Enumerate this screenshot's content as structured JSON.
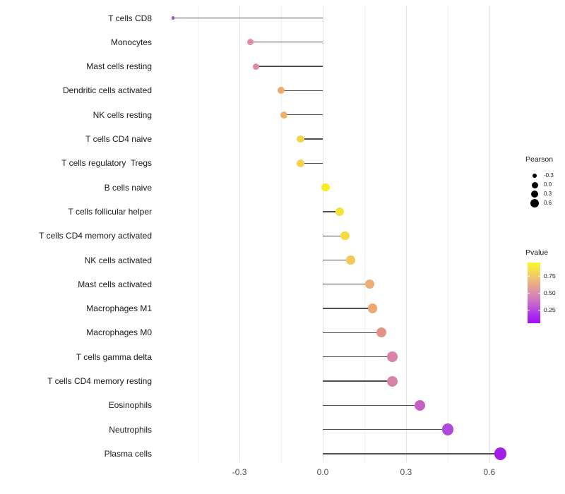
{
  "chart_data": {
    "type": "lollipop",
    "orientation": "horizontal",
    "title": "",
    "xlabel": "",
    "ylabel": "",
    "x_axis": {
      "tick_labels": [
        "-0.3",
        "0.0",
        "0.3",
        "0.6"
      ],
      "tick_values": [
        -0.3,
        0.0,
        0.3,
        0.6
      ],
      "minor_gridline_values": [
        -0.45,
        -0.15,
        0.15,
        0.45
      ],
      "range": [
        -0.6,
        0.71
      ],
      "grid": "vertical-only"
    },
    "points": [
      {
        "label": "T cells CD8",
        "pearson": -0.54,
        "pvalue_approx": 0.08,
        "color": "#A44EC8",
        "diameter": 4.5
      },
      {
        "label": "Monocytes",
        "pearson": -0.26,
        "pvalue_approx": 0.42,
        "color": "#E18CA4",
        "diameter": 9
      },
      {
        "label": "Mast cells resting",
        "pearson": -0.24,
        "pvalue_approx": 0.44,
        "color": "#DF89A1",
        "diameter": 9
      },
      {
        "label": "Dendritic cells activated",
        "pearson": -0.15,
        "pvalue_approx": 0.62,
        "color": "#EDAB6F",
        "diameter": 10
      },
      {
        "label": "NK cells resting",
        "pearson": -0.14,
        "pvalue_approx": 0.64,
        "color": "#EFB167",
        "diameter": 10
      },
      {
        "label": "T cells CD4 naive",
        "pearson": -0.08,
        "pvalue_approx": 0.78,
        "color": "#F4D44D",
        "diameter": 10.5
      },
      {
        "label": "T cells regulatory  Tregs",
        "pearson": -0.08,
        "pvalue_approx": 0.78,
        "color": "#F4D34E",
        "diameter": 10.5
      },
      {
        "label": "B cells naive",
        "pearson": 0.01,
        "pvalue_approx": 0.92,
        "color": "#F9EC22",
        "diameter": 11.5
      },
      {
        "label": "T cells follicular helper",
        "pearson": 0.06,
        "pvalue_approx": 0.82,
        "color": "#F6E03A",
        "diameter": 12
      },
      {
        "label": "T cells CD4 memory activated",
        "pearson": 0.08,
        "pvalue_approx": 0.8,
        "color": "#F5DC41",
        "diameter": 12.5
      },
      {
        "label": "NK cells activated",
        "pearson": 0.1,
        "pvalue_approx": 0.72,
        "color": "#F2C957",
        "diameter": 12.5
      },
      {
        "label": "Mast cells activated",
        "pearson": 0.17,
        "pvalue_approx": 0.62,
        "color": "#EFAD76",
        "diameter": 13
      },
      {
        "label": "Macrophages M1",
        "pearson": 0.18,
        "pvalue_approx": 0.6,
        "color": "#EDA96F",
        "diameter": 13.5
      },
      {
        "label": "Macrophages M0",
        "pearson": 0.21,
        "pvalue_approx": 0.52,
        "color": "#E39286",
        "diameter": 14
      },
      {
        "label": "T cells gamma delta",
        "pearson": 0.25,
        "pvalue_approx": 0.42,
        "color": "#D983AB",
        "diameter": 14.5
      },
      {
        "label": "T cells CD4 memory resting",
        "pearson": 0.25,
        "pvalue_approx": 0.42,
        "color": "#D982A9",
        "diameter": 15
      },
      {
        "label": "Eosinophils",
        "pearson": 0.35,
        "pvalue_approx": 0.25,
        "color": "#C55FC4",
        "diameter": 15.5
      },
      {
        "label": "Neutrophils",
        "pearson": 0.45,
        "pvalue_approx": 0.12,
        "color": "#AF4ADC",
        "diameter": 16.5
      },
      {
        "label": "Plasma cells",
        "pearson": 0.64,
        "pvalue_approx": 0.03,
        "color": "#A21EE9",
        "diameter": 17.5
      }
    ],
    "legend_size": {
      "title": "Pearson",
      "key_color": "#000000",
      "entries": [
        {
          "label": "-0.3",
          "diameter": 6.5
        },
        {
          "label": "0.0",
          "diameter": 9
        },
        {
          "label": "0.3",
          "diameter": 10.5
        },
        {
          "label": "0.6",
          "diameter": 12
        }
      ]
    },
    "legend_color": {
      "title": "Pvalue",
      "tick_labels": [
        "0.75",
        "0.50",
        "0.25"
      ],
      "gradient_stops": [
        "#FCF927",
        "#F6DE4C",
        "#F0C46F",
        "#E6A78C",
        "#DB8FA9",
        "#CC74C0",
        "#BC51D9",
        "#AA2BEC",
        "#9F10F6"
      ]
    },
    "colors": {
      "stem": "#4d4d4d",
      "axis_text": "#4d4d4d",
      "label_text": "#1a1a1a",
      "gridline_major": "#e3e3e3",
      "gridline_minor": "#f0f0f0",
      "background": "#ffffff"
    }
  }
}
